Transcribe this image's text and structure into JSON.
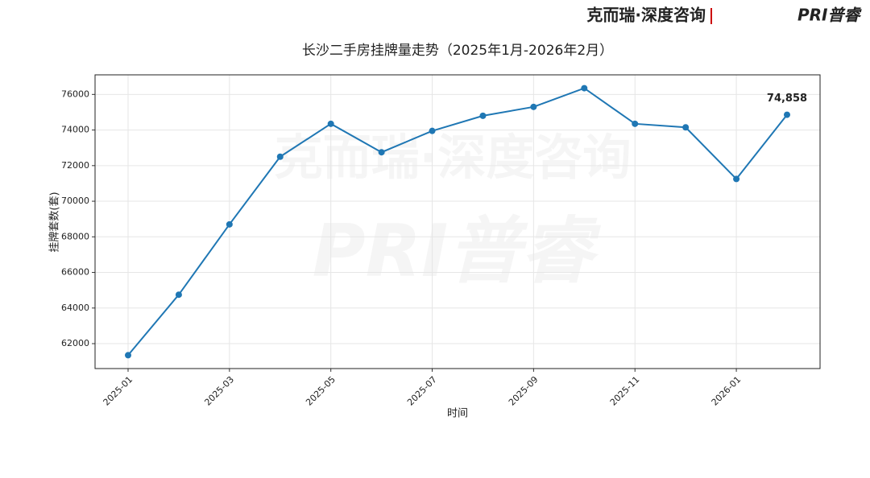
{
  "brand": {
    "left": "克而瑞·深度咨询",
    "right": "PRI普睿"
  },
  "chart_data": {
    "type": "line",
    "title": "长沙二手房挂牌量走势（2025年1月-2026年2月）",
    "x_label": "时间",
    "y_label": "挂牌套数(套)",
    "x": [
      "2025-01",
      "2025-02",
      "2025-03",
      "2025-04",
      "2025-05",
      "2025-06",
      "2025-07",
      "2025-08",
      "2025-09",
      "2025-10",
      "2025-11",
      "2025-12",
      "2026-01",
      "2026-02"
    ],
    "series": [
      {
        "name": "挂牌套数",
        "color": "#1f77b4",
        "values": [
          61350,
          64750,
          68700,
          72500,
          74350,
          72750,
          73950,
          74800,
          75300,
          76350,
          74350,
          74150,
          71250,
          74858
        ],
        "value_labels": [
          null,
          null,
          null,
          null,
          null,
          null,
          null,
          null,
          null,
          null,
          null,
          null,
          null,
          "74,858"
        ]
      }
    ],
    "xticks": [
      "2025-01",
      "2025-03",
      "2025-05",
      "2025-07",
      "2025-09",
      "2025-11",
      "2026-01"
    ],
    "ylim": [
      60600,
      77100
    ],
    "yticks": [
      62000,
      64000,
      66000,
      68000,
      70000,
      72000,
      74000,
      76000
    ],
    "grid": true,
    "legend": false
  }
}
